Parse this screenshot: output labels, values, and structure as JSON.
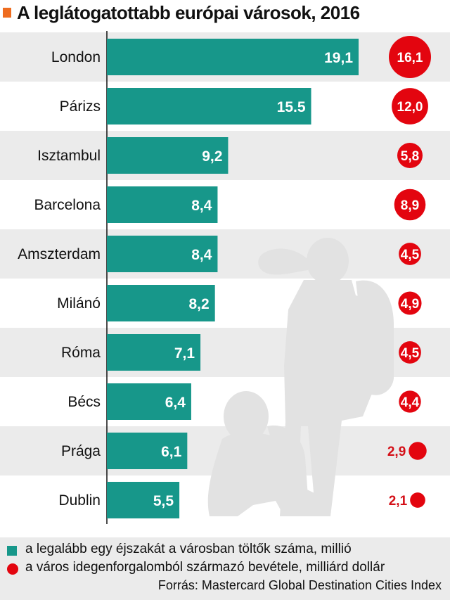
{
  "title": "A leglátogatottabb európai városok, 2016",
  "chart_data": {
    "type": "bar",
    "orientation": "horizontal",
    "categories": [
      "London",
      "Párizs",
      "Isztambul",
      "Barcelona",
      "Amszterdam",
      "Milánó",
      "Róma",
      "Bécs",
      "Prága",
      "Dublin"
    ],
    "series": [
      {
        "name": "a legalább egy éjszakát a városban töltők száma, millió",
        "values": [
          19.1,
          15.5,
          9.2,
          8.4,
          8.4,
          8.2,
          7.1,
          6.4,
          6.1,
          5.5
        ],
        "labels": [
          "19,1",
          "15.5",
          "9,2",
          "8,4",
          "8,4",
          "8,2",
          "7,1",
          "6,4",
          "6,1",
          "5,5"
        ],
        "color": "#17978a"
      },
      {
        "name": "a város idegenforgalomból származó bevétele, milliárd dollár",
        "values": [
          16.1,
          12.0,
          5.8,
          8.9,
          4.5,
          4.9,
          4.5,
          4.4,
          2.9,
          2.1
        ],
        "labels": [
          "16,1",
          "12,0",
          "5,8",
          "8,9",
          "4,5",
          "4,9",
          "4,5",
          "4,4",
          "2,9",
          "2,1"
        ],
        "color": "#e3050f",
        "encoding": "bubble-area"
      }
    ],
    "legend_position": "bottom",
    "source": "Forrás: Mastercard Global Destination Cities Index"
  }
}
